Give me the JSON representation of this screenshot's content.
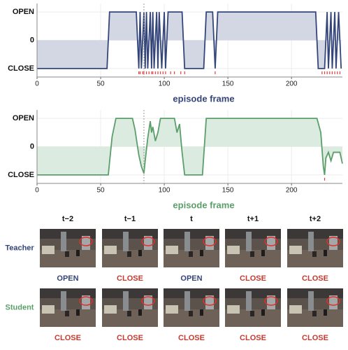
{
  "chart_data": [
    {
      "type": "line",
      "xlabel": "episode frame",
      "color": "#34457a",
      "fill": "#d3d7e3",
      "label_color": "#34457a",
      "x": [
        0,
        55,
        57,
        78,
        80,
        81,
        82,
        84,
        85,
        86,
        87,
        89,
        90,
        91,
        92,
        94,
        95,
        96,
        98,
        100,
        101,
        103,
        114,
        116,
        131,
        133,
        138,
        140,
        142,
        219,
        221,
        226,
        228,
        229,
        231,
        232,
        234,
        235,
        237,
        239
      ],
      "values": [
        -1,
        -1,
        1,
        1,
        -1,
        1,
        -1,
        1,
        -1,
        1,
        -1,
        1,
        -1,
        1,
        -1,
        1,
        -1,
        1,
        -1,
        1,
        -1,
        1,
        1,
        -1,
        -1,
        1,
        1,
        -1,
        1,
        1,
        -1,
        -1,
        1,
        -1,
        1,
        -1,
        1,
        -1,
        1,
        -1
      ],
      "markers": [
        80,
        81,
        83,
        84,
        86,
        88,
        90,
        91,
        93,
        95,
        97,
        99,
        101,
        105,
        108,
        113,
        116,
        140,
        224,
        226,
        228,
        230,
        232,
        234,
        236,
        238
      ],
      "marker_color": "#e0403a",
      "vline": 84,
      "xlim": [
        0,
        240
      ],
      "ylim": [
        -1.3,
        1.3
      ],
      "xticks": [
        0,
        50,
        100,
        150,
        200
      ],
      "yticks": [
        {
          "value": 1,
          "label": "OPEN"
        },
        0,
        {
          "value": -1,
          "label": "CLOSE"
        }
      ],
      "grid": true
    },
    {
      "type": "line",
      "xlabel": "episode frame",
      "color": "#5a9e6a",
      "fill": "#dcebdf",
      "label_color": "#5a9e6a",
      "x": [
        0,
        56,
        59,
        62,
        75,
        77,
        80,
        82,
        84,
        85,
        87,
        89,
        90,
        91,
        93,
        95,
        97,
        108,
        110,
        112,
        114,
        116,
        130,
        133,
        220,
        223,
        225,
        226,
        227,
        229,
        231,
        233,
        238,
        240
      ],
      "values": [
        -1,
        -1,
        0.35,
        1,
        1,
        0.6,
        -0.3,
        -0.7,
        -0.95,
        -0.5,
        0.3,
        0.9,
        0.5,
        0.7,
        0.2,
        0.5,
        1,
        1,
        0.5,
        0.8,
        -0.2,
        -1,
        -1,
        1,
        1,
        0.5,
        -0.7,
        -1,
        -0.4,
        -0.2,
        -0.5,
        -0.2,
        -0.2,
        -0.6
      ],
      "markers": [
        226
      ],
      "marker_color": "#e0403a",
      "vline": 84,
      "xlim": [
        0,
        240
      ],
      "ylim": [
        -1.3,
        1.3
      ],
      "xticks": [
        0,
        50,
        100,
        150,
        200
      ],
      "yticks": [
        {
          "value": 1,
          "label": "OPEN"
        },
        0,
        {
          "value": -1,
          "label": "CLOSE"
        }
      ],
      "grid": true
    }
  ],
  "frames": {
    "headers": [
      "t−2",
      "t−1",
      "t",
      "t+1",
      "t+2"
    ],
    "rows": [
      {
        "name": "Teacher",
        "color": "#34457a",
        "cells": [
          {
            "label": "OPEN",
            "color": "#34457a"
          },
          {
            "label": "CLOSE",
            "color": "#c8392f"
          },
          {
            "label": "OPEN",
            "color": "#34457a"
          },
          {
            "label": "CLOSE",
            "color": "#c8392f"
          },
          {
            "label": "CLOSE",
            "color": "#c8392f"
          }
        ]
      },
      {
        "name": "Student",
        "color": "#5a9e6a",
        "cells": [
          {
            "label": "CLOSE",
            "color": "#c8392f"
          },
          {
            "label": "CLOSE",
            "color": "#c8392f"
          },
          {
            "label": "CLOSE",
            "color": "#c8392f"
          },
          {
            "label": "CLOSE",
            "color": "#c8392f"
          },
          {
            "label": "CLOSE",
            "color": "#c8392f"
          }
        ]
      }
    ]
  }
}
